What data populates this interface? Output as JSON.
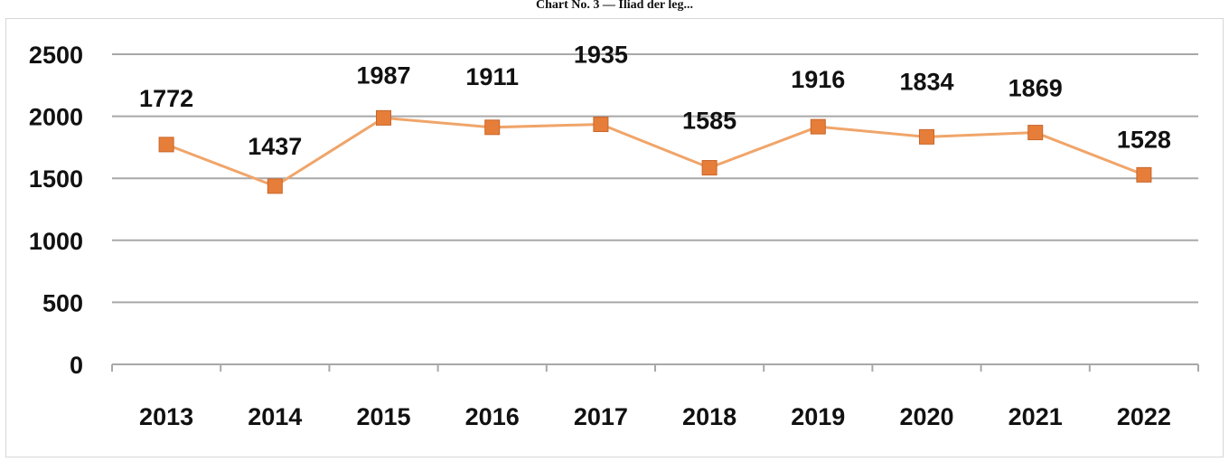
{
  "title": "Chart No. 3 — Iliad der leg...",
  "chart_data": {
    "type": "line",
    "title": "",
    "xlabel": "",
    "ylabel": "",
    "categories": [
      "2013",
      "2014",
      "2015",
      "2016",
      "2017",
      "2018",
      "2019",
      "2020",
      "2021",
      "2022"
    ],
    "series": [
      {
        "values": [
          1772,
          1437,
          1987,
          1911,
          1935,
          1585,
          1916,
          1834,
          1869,
          1528
        ]
      }
    ],
    "ylim": [
      0,
      2500
    ],
    "yticks": [
      0,
      500,
      1000,
      1500,
      2000,
      2500
    ],
    "grid": true,
    "legend": "none",
    "colors": {
      "line": "#f0a56a",
      "marker": "#e67e3a",
      "grid": "#a8a8a8",
      "axis": "#a8a8a8"
    }
  }
}
